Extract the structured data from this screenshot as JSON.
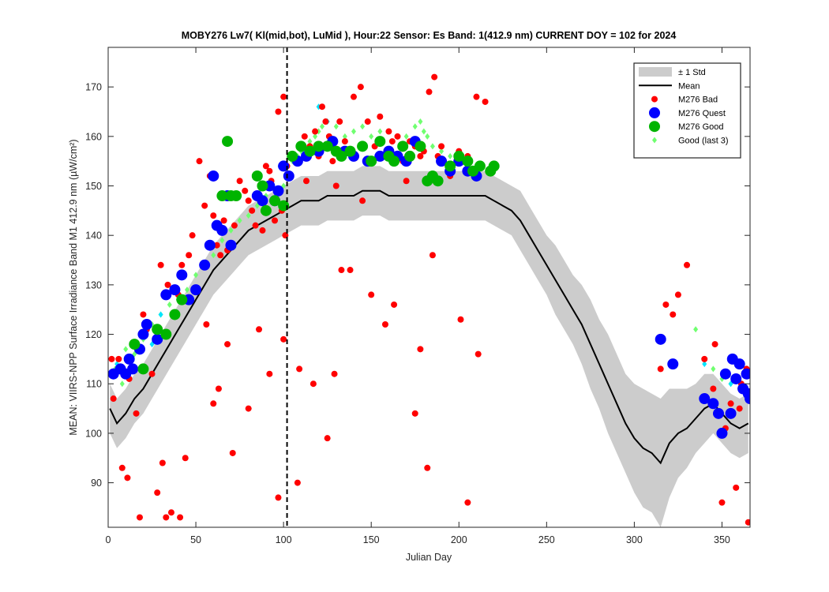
{
  "chart_data": {
    "type": "scatter",
    "title": "MOBY276   Lw7( Kl(mid,bot), LuMid ),   Hour:22 Sensor: Es Band: 1(412.9 nm)   CURRENT DOY = 102 for 2024",
    "xlabel": "Julian Day",
    "ylabel": "MEAN: VIIRS-NPP Surface Irradiance Band M1 412.9 nm (µW/cm²)",
    "xlim": [
      0,
      366
    ],
    "ylim": [
      81,
      178
    ],
    "xticks": [
      0,
      50,
      100,
      150,
      200,
      250,
      300,
      350
    ],
    "yticks": [
      90,
      100,
      110,
      120,
      130,
      140,
      150,
      160,
      170
    ],
    "current_doy": 102,
    "grid": false,
    "legend_position": "top-right",
    "legend": [
      {
        "label": "± 1 Std",
        "symbol": "patch",
        "color": "#cccccc"
      },
      {
        "label": "Mean",
        "symbol": "line",
        "color": "#000000"
      },
      {
        "label": "M276 Bad",
        "symbol": "dot",
        "color": "#ff0000"
      },
      {
        "label": "M276 Quest",
        "symbol": "dot",
        "color": "#0000ff"
      },
      {
        "label": "M276 Good",
        "symbol": "dot",
        "color": "#00b400"
      },
      {
        "label": "Good (last 3)",
        "symbol": "diamond",
        "color": "#70ff70"
      }
    ],
    "mean": {
      "x": [
        1,
        5,
        10,
        15,
        20,
        25,
        30,
        35,
        40,
        45,
        50,
        55,
        60,
        65,
        70,
        75,
        80,
        85,
        90,
        95,
        100,
        105,
        110,
        115,
        120,
        125,
        130,
        135,
        140,
        145,
        150,
        155,
        160,
        165,
        170,
        175,
        180,
        185,
        190,
        195,
        200,
        205,
        210,
        215,
        220,
        225,
        230,
        235,
        240,
        245,
        250,
        255,
        260,
        265,
        270,
        275,
        280,
        285,
        290,
        295,
        300,
        305,
        310,
        315,
        320,
        325,
        330,
        335,
        340,
        345,
        350,
        355,
        360,
        365
      ],
      "y": [
        105,
        102,
        104,
        107,
        109,
        112,
        115,
        118,
        121,
        124,
        127,
        130,
        133,
        135,
        137,
        139,
        141,
        142,
        143,
        144,
        145,
        146,
        147,
        147,
        147,
        148,
        148,
        148,
        148,
        149,
        149,
        149,
        148,
        148,
        148,
        148,
        148,
        148,
        148,
        148,
        148,
        148,
        148,
        148,
        147,
        146,
        145,
        143,
        140,
        137,
        134,
        131,
        128,
        125,
        122,
        118,
        114,
        110,
        106,
        102,
        99,
        97,
        96,
        94,
        98,
        100,
        101,
        103,
        105,
        106,
        104,
        102,
        101,
        102
      ],
      "std": [
        5,
        5,
        5,
        5,
        5,
        5,
        5,
        5,
        5,
        5,
        5,
        5,
        5,
        5,
        5,
        5,
        5,
        5,
        5,
        5,
        5,
        5,
        5,
        5,
        5,
        5,
        5,
        5,
        5,
        5,
        5,
        5,
        5,
        5,
        5,
        5,
        5,
        5,
        5,
        5,
        5,
        5,
        5,
        5,
        5,
        5,
        5,
        6,
        6,
        6,
        6,
        7,
        7,
        7,
        8,
        9,
        9,
        10,
        10,
        10,
        11,
        12,
        12,
        13,
        11,
        9,
        8,
        7,
        7,
        6,
        6,
        6,
        6,
        6
      ]
    },
    "bad": {
      "x": [
        3,
        8,
        11,
        15,
        18,
        22,
        25,
        30,
        34,
        38,
        40,
        42,
        46,
        48,
        52,
        55,
        58,
        60,
        62,
        64,
        66,
        68,
        72,
        75,
        78,
        80,
        82,
        84,
        88,
        90,
        92,
        93,
        95,
        97,
        99,
        100,
        101,
        102,
        108,
        112,
        115,
        118,
        120,
        122,
        124,
        126,
        128,
        130,
        132,
        135,
        140,
        144,
        148,
        152,
        155,
        160,
        162,
        165,
        168,
        170,
        172,
        175,
        178,
        180,
        183,
        186,
        188,
        190,
        195,
        200,
        205,
        210,
        215,
        2,
        6,
        12,
        16,
        20,
        28,
        31,
        33,
        36,
        41,
        44,
        56,
        60,
        63,
        68,
        71,
        80,
        86,
        92,
        97,
        100,
        109,
        113,
        117,
        125,
        129,
        133,
        138,
        145,
        150,
        158,
        163,
        175,
        178,
        182,
        185,
        201,
        205,
        211,
        315,
        318,
        322,
        325,
        330,
        340,
        345,
        350,
        355,
        360,
        365,
        346,
        358,
        364,
        361,
        352
      ],
      "y": [
        107,
        93,
        91,
        113,
        83,
        121,
        112,
        134,
        130,
        124,
        128,
        134,
        136,
        140,
        155,
        146,
        152,
        144,
        138,
        136,
        143,
        137,
        142,
        151,
        149,
        147,
        145,
        142,
        141,
        154,
        153,
        151,
        143,
        165,
        145,
        168,
        140,
        154,
        90,
        160,
        158,
        161,
        156,
        166,
        163,
        160,
        155,
        150,
        163,
        159,
        168,
        170,
        163,
        158,
        164,
        161,
        159,
        160,
        155,
        151,
        159,
        158,
        156,
        157,
        169,
        172,
        156,
        158,
        152,
        157,
        156,
        168,
        167,
        115,
        115,
        111,
        104,
        124,
        88,
        94,
        83,
        84,
        83,
        95,
        122,
        106,
        109,
        118,
        96,
        105,
        121,
        112,
        87,
        119,
        113,
        151,
        110,
        99,
        112,
        133,
        133,
        147,
        128,
        122,
        126,
        104,
        117,
        93,
        136,
        123,
        86,
        116,
        113,
        126,
        124,
        128,
        134,
        115,
        109,
        86,
        106,
        105,
        82,
        118,
        89,
        113,
        110,
        101
      ],
      "size": "small"
    },
    "quest": {
      "x": [
        3,
        7,
        10,
        12,
        14,
        18,
        20,
        22,
        28,
        33,
        38,
        42,
        46,
        50,
        55,
        58,
        60,
        62,
        65,
        68,
        70,
        85,
        88,
        92,
        95,
        97,
        100,
        103,
        108,
        113,
        120,
        128,
        135,
        140,
        148,
        155,
        160,
        165,
        170,
        175,
        190,
        195,
        200,
        205,
        210,
        315,
        322,
        340,
        345,
        350,
        355,
        360,
        362,
        365,
        348,
        352,
        356,
        358,
        364,
        366
      ],
      "y": [
        112,
        113,
        112,
        115,
        113,
        117,
        120,
        122,
        119,
        128,
        129,
        132,
        127,
        129,
        134,
        138,
        152,
        142,
        141,
        148,
        138,
        148,
        147,
        150,
        147,
        149,
        154,
        152,
        155,
        156,
        157,
        159,
        157,
        156,
        155,
        156,
        157,
        156,
        155,
        159,
        155,
        153,
        155,
        153,
        152,
        119,
        114,
        107,
        106,
        100,
        104,
        114,
        109,
        108,
        104,
        112,
        115,
        111,
        112,
        107
      ],
      "size": "medium"
    },
    "good": {
      "x": [
        15,
        20,
        28,
        33,
        38,
        42,
        65,
        68,
        70,
        73,
        85,
        88,
        90,
        95,
        100,
        105,
        110,
        115,
        120,
        125,
        130,
        133,
        138,
        145,
        150,
        155,
        160,
        163,
        168,
        172,
        178,
        182,
        185,
        188,
        195,
        200,
        205,
        208,
        212,
        218,
        220
      ],
      "y": [
        118,
        113,
        121,
        120,
        124,
        127,
        148,
        159,
        148,
        148,
        152,
        150,
        145,
        147,
        146,
        156,
        158,
        157,
        158,
        158,
        157,
        156,
        157,
        158,
        155,
        159,
        156,
        155,
        158,
        156,
        158,
        151,
        152,
        151,
        154,
        156,
        155,
        153,
        154,
        153,
        154
      ],
      "size": "medium"
    },
    "good_last3": {
      "x": [
        4,
        8,
        10,
        15,
        20,
        25,
        30,
        35,
        40,
        45,
        50,
        55,
        60,
        65,
        70,
        75,
        80,
        85,
        90,
        95,
        100,
        103,
        105,
        108,
        110,
        112,
        115,
        118,
        120,
        122,
        125,
        130,
        135,
        140,
        145,
        150,
        155,
        160,
        165,
        170,
        175,
        178,
        180,
        182,
        185,
        190,
        195,
        200,
        205,
        335,
        340,
        345,
        350,
        355,
        360
      ],
      "y": [
        113,
        110,
        117,
        116,
        119,
        122,
        124,
        126,
        127,
        129,
        132,
        134,
        136,
        139,
        141,
        143,
        144,
        146,
        148,
        149,
        150,
        152,
        155,
        156,
        157,
        158,
        159,
        160,
        161,
        162,
        163,
        162,
        160,
        161,
        162,
        160,
        161,
        161,
        160,
        160,
        162,
        163,
        161,
        160,
        158,
        157,
        156,
        155,
        154,
        121,
        115,
        113,
        111,
        110,
        109
      ],
      "size": "small"
    },
    "good_last3_cyan": {
      "x": [
        5,
        25,
        30,
        98,
        102,
        120,
        125,
        340,
        355
      ],
      "y": [
        114,
        118,
        124,
        154,
        152,
        166,
        163,
        114,
        110
      ]
    }
  }
}
